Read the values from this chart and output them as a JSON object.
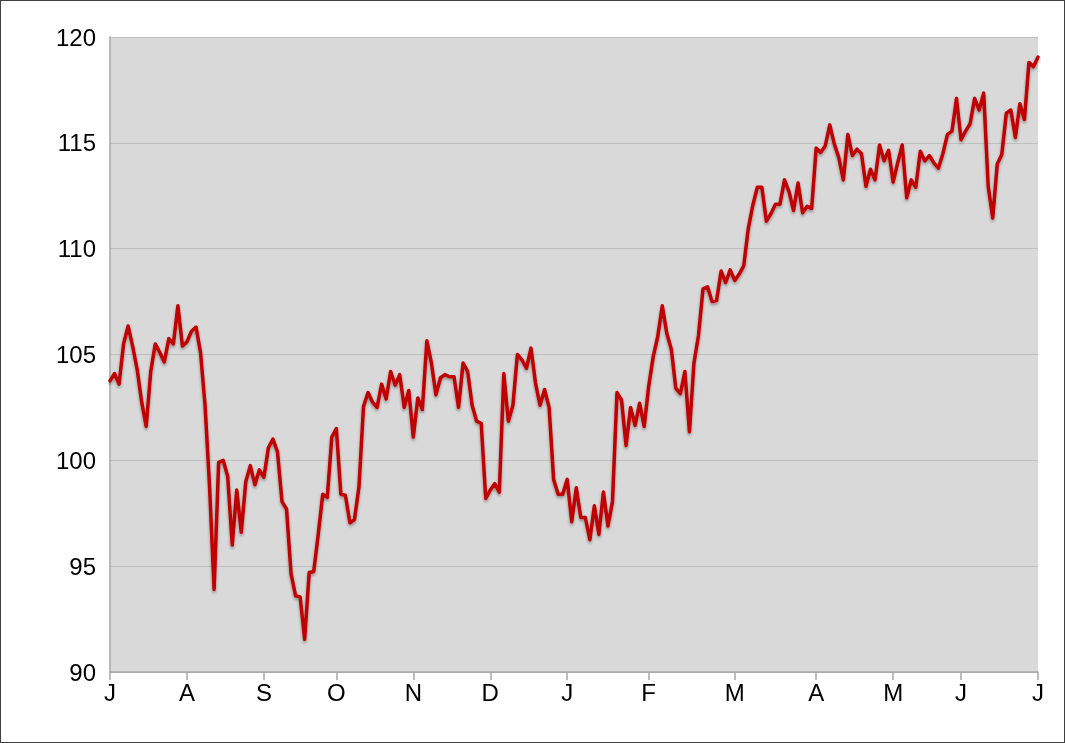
{
  "chart_data": {
    "type": "line",
    "color": "#c00000",
    "grid": "y",
    "marker": "none",
    "line_style": "solid",
    "categories": [
      "J",
      null,
      null,
      null,
      null,
      null,
      null,
      null,
      null,
      null,
      null,
      null,
      null,
      null,
      null,
      null,
      null,
      "A",
      null,
      null,
      null,
      null,
      null,
      null,
      null,
      null,
      null,
      null,
      null,
      null,
      null,
      null,
      null,
      null,
      "S",
      null,
      null,
      null,
      null,
      null,
      null,
      null,
      null,
      null,
      null,
      null,
      null,
      null,
      null,
      null,
      "O",
      null,
      null,
      null,
      null,
      null,
      null,
      null,
      null,
      null,
      null,
      null,
      null,
      null,
      null,
      null,
      null,
      "N",
      null,
      null,
      null,
      null,
      null,
      null,
      null,
      null,
      null,
      null,
      null,
      null,
      null,
      null,
      null,
      null,
      "D",
      null,
      null,
      null,
      null,
      null,
      null,
      null,
      null,
      null,
      null,
      null,
      null,
      null,
      null,
      null,
      null,
      "J",
      null,
      null,
      null,
      null,
      null,
      null,
      null,
      null,
      null,
      null,
      null,
      null,
      null,
      null,
      null,
      null,
      null,
      "F",
      null,
      null,
      null,
      null,
      null,
      null,
      null,
      null,
      null,
      null,
      null,
      null,
      null,
      null,
      null,
      null,
      null,
      null,
      "M",
      null,
      null,
      null,
      null,
      null,
      null,
      null,
      null,
      null,
      null,
      null,
      null,
      null,
      null,
      null,
      null,
      null,
      "A",
      null,
      null,
      null,
      null,
      null,
      null,
      null,
      null,
      null,
      null,
      null,
      null,
      null,
      null,
      null,
      null,
      "M",
      null,
      null,
      null,
      null,
      null,
      null,
      null,
      null,
      null,
      null,
      null,
      null,
      null,
      null,
      "J",
      null,
      null,
      null,
      null,
      null,
      null,
      null,
      null,
      null,
      null,
      null,
      null,
      null,
      null,
      null,
      null,
      "J"
    ],
    "ylim": [
      90,
      120
    ],
    "yticks": [
      90,
      95,
      100,
      105,
      110,
      115,
      120
    ],
    "values": [
      103.75,
      104.1,
      103.6,
      105.5,
      106.35,
      105.4,
      104.3,
      102.75,
      101.6,
      104.2,
      105.5,
      105.1,
      104.65,
      105.75,
      105.5,
      107.3,
      105.4,
      105.6,
      106.1,
      106.3,
      105.1,
      102.6,
      98.75,
      93.9,
      99.9,
      100,
      99.25,
      96,
      98.6,
      96.6,
      99,
      99.75,
      98.85,
      99.55,
      99.2,
      100.6,
      101,
      100.4,
      98.05,
      97.7,
      94.65,
      93.6,
      93.55,
      91.55,
      94.7,
      94.75,
      96.5,
      98.4,
      98.25,
      101.1,
      101.5,
      98.4,
      98.35,
      97.05,
      97.2,
      98.75,
      102.55,
      103.2,
      102.75,
      102.5,
      103.6,
      102.9,
      104.2,
      103.55,
      104.05,
      102.5,
      103.3,
      101.1,
      102.95,
      102.4,
      105.65,
      104.6,
      103.1,
      103.9,
      104.05,
      103.95,
      103.95,
      102.5,
      104.6,
      104.2,
      102.6,
      101.85,
      101.75,
      98.2,
      98.6,
      98.9,
      98.5,
      104.1,
      101.85,
      102.6,
      105,
      104.75,
      104.35,
      105.3,
      103.65,
      102.6,
      103.35,
      102.5,
      99.1,
      98.4,
      98.4,
      99.1,
      97.1,
      98.7,
      97.3,
      97.3,
      96.25,
      97.85,
      96.5,
      98.5,
      96.9,
      98.05,
      103.2,
      102.85,
      100.7,
      102.5,
      101.65,
      102.7,
      101.6,
      103.5,
      104.9,
      105.85,
      107.3,
      106,
      105.25,
      103.4,
      103.15,
      104.2,
      101.35,
      104.6,
      105.9,
      108.1,
      108.2,
      107.5,
      107.55,
      108.95,
      108.4,
      109,
      108.5,
      108.8,
      109.2,
      110.95,
      112.05,
      112.9,
      112.9,
      111.3,
      111.65,
      112.1,
      112.1,
      113.25,
      112.7,
      111.8,
      113.1,
      111.7,
      112,
      111.9,
      114.75,
      114.55,
      114.85,
      115.85,
      114.95,
      114.3,
      113.25,
      115.4,
      114.4,
      114.7,
      114.5,
      112.95,
      113.75,
      113.25,
      114.9,
      114.15,
      114.65,
      113.15,
      114.05,
      114.9,
      112.4,
      113.25,
      112.9,
      114.6,
      114.15,
      114.4,
      114.05,
      113.8,
      114.5,
      115.4,
      115.55,
      117.1,
      115.15,
      115.55,
      115.9,
      117.1,
      116.55,
      117.35,
      112.95,
      111.45,
      114,
      114.45,
      116.4,
      116.55,
      115.25,
      116.85,
      116.1,
      118.8,
      118.6,
      119.05
    ]
  }
}
